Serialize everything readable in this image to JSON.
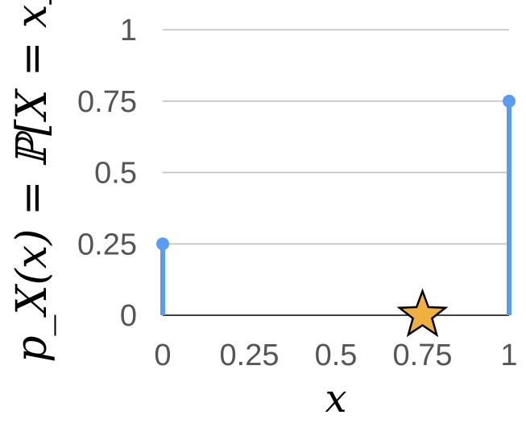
{
  "chart_data": {
    "type": "stem",
    "title": "",
    "xlabel": "x",
    "ylabel": "p_X(x) = ℙ[X = x]",
    "xlim": [
      0,
      1
    ],
    "ylim": [
      0,
      1
    ],
    "x_ticks": [
      "0",
      "0.25",
      "0.5",
      "0.75",
      "1"
    ],
    "y_ticks": [
      "0",
      "0.25",
      "0.5",
      "0.75",
      "1"
    ],
    "grid": "horizontal",
    "points": [
      {
        "x": 0,
        "y": 0.25
      },
      {
        "x": 1,
        "y": 0.75
      }
    ],
    "marker": {
      "shape": "star",
      "x": 0.75,
      "y": 0
    },
    "colors": {
      "stem": "#5b9cf2",
      "star_fill": "#f0b040",
      "star_stroke": "#000000",
      "grid": "#bdbdbd",
      "tick_text": "#555555"
    }
  }
}
